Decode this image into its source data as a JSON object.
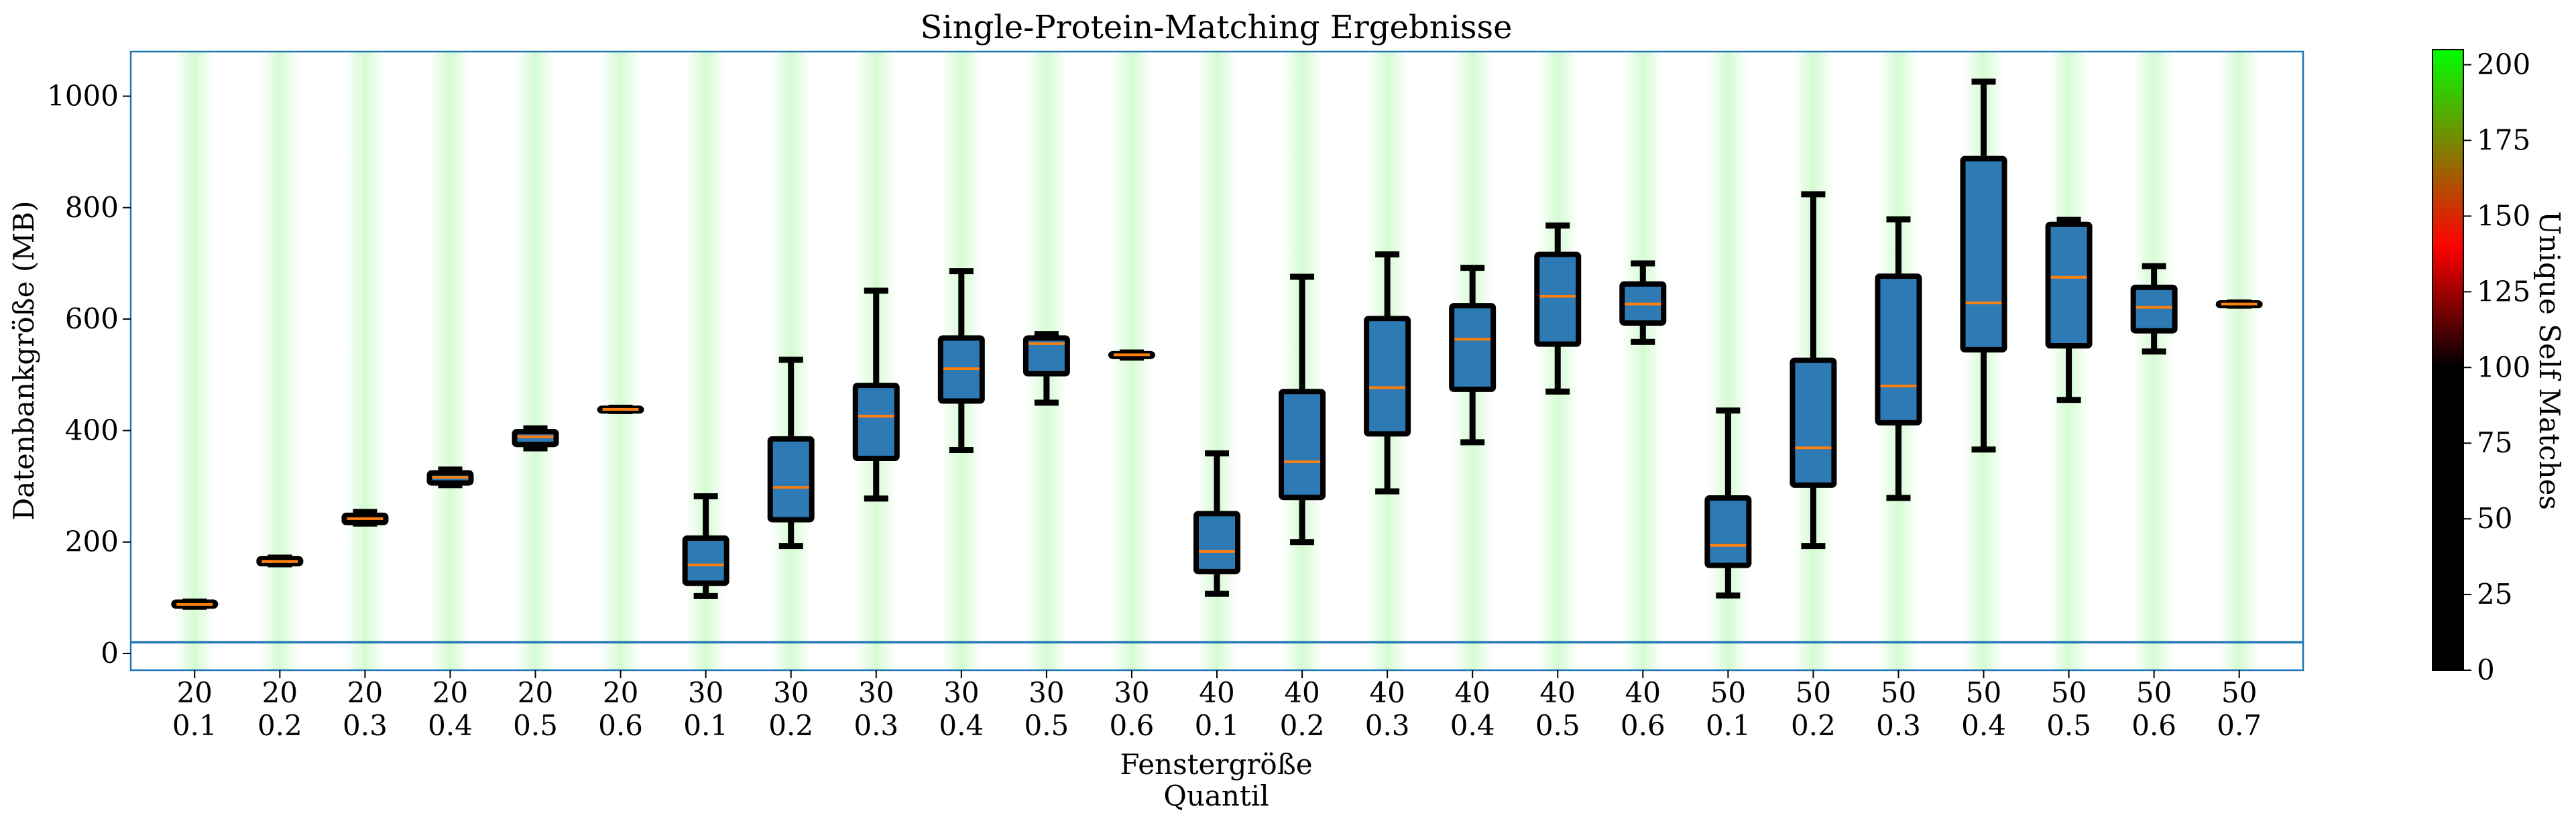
{
  "chart_data": {
    "type": "box",
    "title": "Single-Protein-Matching Ergebnisse",
    "ylabel": "Datenbankgröße (MB)",
    "xlabel_lines": [
      "Fenstergröße",
      "Quantil"
    ],
    "ylim": [
      -30,
      1080
    ],
    "yticks": [
      0,
      200,
      400,
      600,
      800,
      1000
    ],
    "hline": 20,
    "categories": [
      {
        "window": "20",
        "quantile": "0.1"
      },
      {
        "window": "20",
        "quantile": "0.2"
      },
      {
        "window": "20",
        "quantile": "0.3"
      },
      {
        "window": "20",
        "quantile": "0.4"
      },
      {
        "window": "20",
        "quantile": "0.5"
      },
      {
        "window": "20",
        "quantile": "0.6"
      },
      {
        "window": "30",
        "quantile": "0.1"
      },
      {
        "window": "30",
        "quantile": "0.2"
      },
      {
        "window": "30",
        "quantile": "0.3"
      },
      {
        "window": "30",
        "quantile": "0.4"
      },
      {
        "window": "30",
        "quantile": "0.5"
      },
      {
        "window": "30",
        "quantile": "0.6"
      },
      {
        "window": "40",
        "quantile": "0.1"
      },
      {
        "window": "40",
        "quantile": "0.2"
      },
      {
        "window": "40",
        "quantile": "0.3"
      },
      {
        "window": "40",
        "quantile": "0.4"
      },
      {
        "window": "40",
        "quantile": "0.5"
      },
      {
        "window": "40",
        "quantile": "0.6"
      },
      {
        "window": "50",
        "quantile": "0.1"
      },
      {
        "window": "50",
        "quantile": "0.2"
      },
      {
        "window": "50",
        "quantile": "0.3"
      },
      {
        "window": "50",
        "quantile": "0.4"
      },
      {
        "window": "50",
        "quantile": "0.5"
      },
      {
        "window": "50",
        "quantile": "0.6"
      },
      {
        "window": "50",
        "quantile": "0.7"
      }
    ],
    "boxes": [
      {
        "whislo": 84,
        "q1": 85,
        "med": 88,
        "q3": 92,
        "whishi": 93
      },
      {
        "whislo": 160,
        "q1": 161,
        "med": 165,
        "q3": 170,
        "whishi": 172
      },
      {
        "whislo": 233,
        "q1": 235,
        "med": 242,
        "q3": 248,
        "whishi": 254
      },
      {
        "whislo": 302,
        "q1": 306,
        "med": 316,
        "q3": 324,
        "whishi": 330
      },
      {
        "whislo": 368,
        "q1": 375,
        "med": 389,
        "q3": 398,
        "whishi": 404
      },
      {
        "whislo": 435,
        "q1": 436,
        "med": 438,
        "q3": 440,
        "whishi": 441
      },
      {
        "whislo": 103,
        "q1": 126,
        "med": 159,
        "q3": 207,
        "whishi": 282
      },
      {
        "whislo": 193,
        "q1": 240,
        "med": 298,
        "q3": 385,
        "whishi": 527
      },
      {
        "whislo": 278,
        "q1": 350,
        "med": 426,
        "q3": 481,
        "whishi": 651
      },
      {
        "whislo": 365,
        "q1": 453,
        "med": 511,
        "q3": 566,
        "whishi": 686
      },
      {
        "whislo": 450,
        "q1": 502,
        "med": 556,
        "q3": 566,
        "whishi": 573
      },
      {
        "whislo": 531,
        "q1": 533,
        "med": 536,
        "q3": 538,
        "whishi": 540
      },
      {
        "whislo": 107,
        "q1": 147,
        "med": 183,
        "q3": 251,
        "whishi": 359
      },
      {
        "whislo": 200,
        "q1": 280,
        "med": 344,
        "q3": 470,
        "whishi": 676
      },
      {
        "whislo": 291,
        "q1": 394,
        "med": 477,
        "q3": 601,
        "whishi": 716
      },
      {
        "whislo": 379,
        "q1": 474,
        "med": 564,
        "q3": 624,
        "whishi": 692
      },
      {
        "whislo": 470,
        "q1": 555,
        "med": 641,
        "q3": 716,
        "whishi": 768
      },
      {
        "whislo": 559,
        "q1": 593,
        "med": 627,
        "q3": 663,
        "whishi": 700
      },
      {
        "whislo": 104,
        "q1": 158,
        "med": 194,
        "q3": 279,
        "whishi": 436
      },
      {
        "whislo": 193,
        "q1": 302,
        "med": 369,
        "q3": 526,
        "whishi": 824
      },
      {
        "whislo": 279,
        "q1": 414,
        "med": 480,
        "q3": 677,
        "whishi": 779
      },
      {
        "whislo": 366,
        "q1": 545,
        "med": 629,
        "q3": 888,
        "whishi": 1026
      },
      {
        "whislo": 455,
        "q1": 552,
        "med": 675,
        "q3": 770,
        "whishi": 778
      },
      {
        "whislo": 542,
        "q1": 579,
        "med": 621,
        "q3": 657,
        "whishi": 695
      },
      {
        "whislo": 624,
        "q1": 625,
        "med": 627,
        "q3": 629,
        "whishi": 630
      }
    ],
    "box_fill": "#2e7ab4",
    "median_color": "#ff7f0e",
    "hline_color": "#1f77b4",
    "band_color": "#d5fbd2",
    "grid": false,
    "colorbar": {
      "label": "Unique Self Matches",
      "range": [
        0,
        205
      ],
      "ticks": [
        0,
        25,
        50,
        75,
        100,
        125,
        150,
        175,
        200
      ],
      "stops": [
        {
          "value": 0,
          "color": "#000000"
        },
        {
          "value": 100,
          "color": "#000000"
        },
        {
          "value": 140,
          "color": "#ff0000"
        },
        {
          "value": 205,
          "color": "#00ff00"
        }
      ]
    }
  }
}
